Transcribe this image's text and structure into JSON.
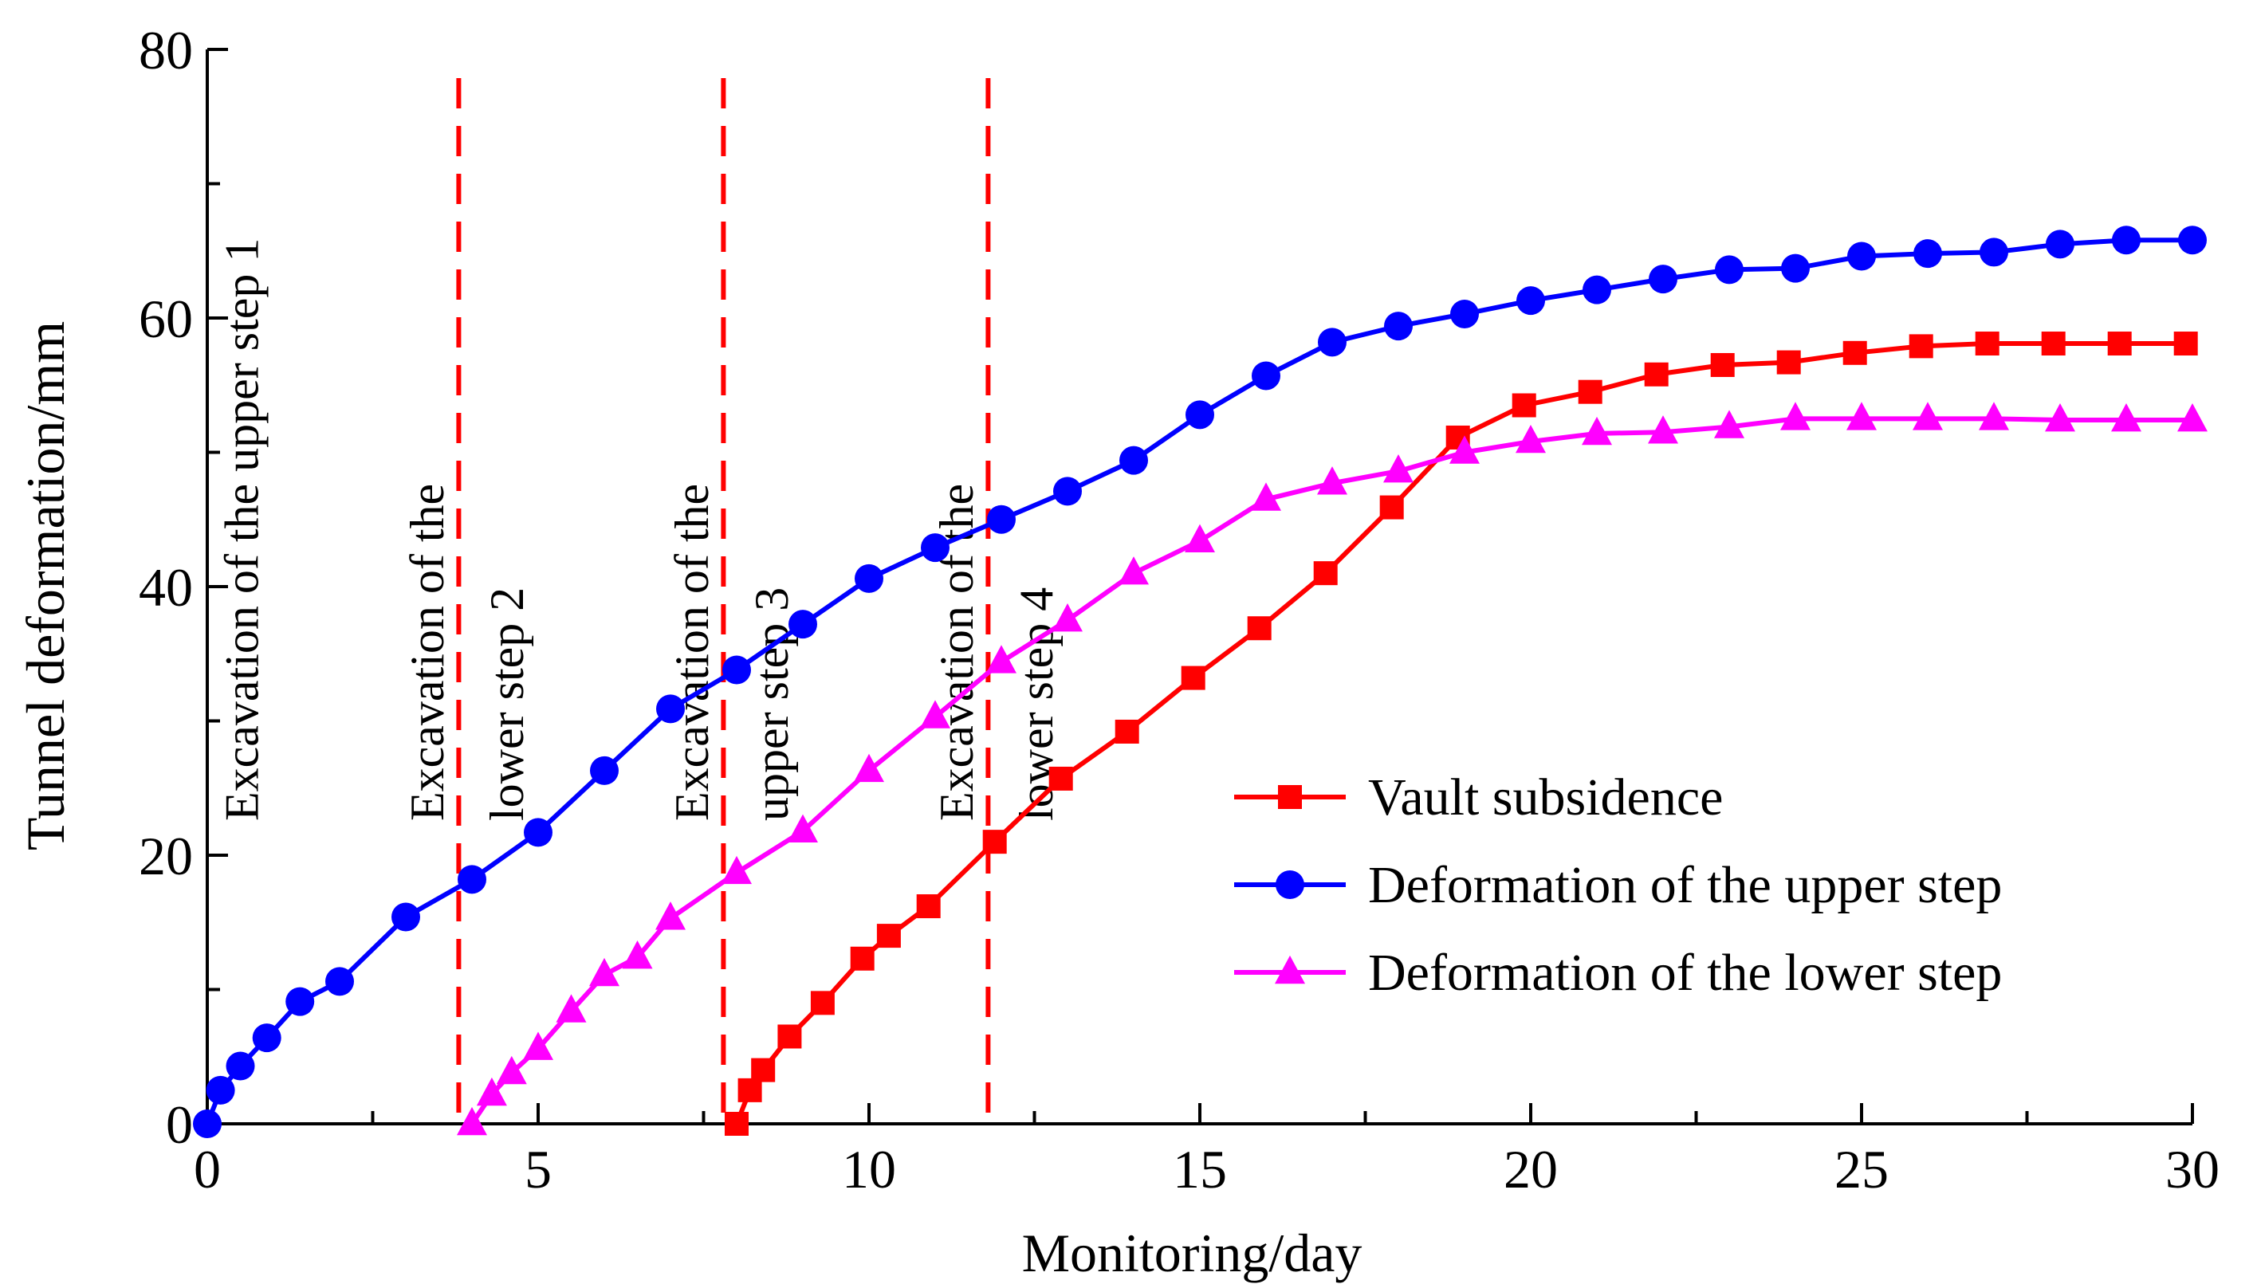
{
  "chart_data": {
    "type": "line",
    "xlabel": "Monitoring/day",
    "ylabel": "Tunnel deformation/mm",
    "xlim": [
      0,
      30
    ],
    "ylim": [
      0,
      80
    ],
    "xticks": [
      0,
      5,
      10,
      15,
      20,
      25,
      30
    ],
    "yticks": [
      0,
      20,
      40,
      60,
      80
    ],
    "series": [
      {
        "name": "Vault subsidence",
        "color": "#ff0000",
        "marker": "square",
        "x": [
          8,
          8.2,
          8.4,
          8.8,
          9.3,
          9.9,
          10.3,
          10.9,
          11.9,
          12.9,
          13.9,
          14.9,
          15.9,
          16.9,
          17.9,
          18.9,
          19.9,
          20.9,
          21.9,
          22.9,
          23.9,
          24.9,
          25.9,
          26.9,
          27.9,
          28.9,
          29.9
        ],
        "y": [
          0,
          2.5,
          4,
          6.5,
          9,
          12.3,
          14,
          16.2,
          21,
          25.7,
          29.2,
          33.2,
          36.9,
          41,
          45.9,
          51.1,
          53.5,
          54.5,
          55.8,
          56.5,
          56.7,
          57.4,
          57.9,
          58.1,
          58.1,
          58.1,
          58.1
        ]
      },
      {
        "name": "Deformation of the upper step",
        "color": "#0000ff",
        "marker": "circle",
        "x": [
          0,
          0.2,
          0.5,
          0.9,
          1.4,
          2,
          3,
          4,
          5,
          6,
          7,
          8,
          9,
          10,
          11,
          12,
          13,
          14,
          15,
          16,
          17,
          18,
          19,
          20,
          21,
          22,
          23,
          24,
          25,
          26,
          27,
          28,
          29,
          30
        ],
        "y": [
          0,
          2.5,
          4.3,
          6.4,
          9.1,
          10.6,
          15.4,
          18.2,
          21.7,
          26.3,
          30.9,
          33.8,
          37.2,
          40.6,
          42.9,
          45,
          47.1,
          49.4,
          52.8,
          55.7,
          58.2,
          59.4,
          60.3,
          61.3,
          62.1,
          62.9,
          63.6,
          63.7,
          64.6,
          64.8,
          64.9,
          65.5,
          65.8,
          65.8
        ]
      },
      {
        "name": "Deformation of the lower step",
        "color": "#ff00ff",
        "marker": "triangle",
        "x": [
          4,
          4.3,
          4.6,
          5,
          5.5,
          6,
          6.5,
          7,
          8,
          9,
          10,
          11,
          12,
          13,
          14,
          15,
          16,
          17,
          18,
          19,
          20,
          21,
          22,
          23,
          24,
          25,
          26,
          27,
          28,
          29,
          30
        ],
        "y": [
          0,
          2.2,
          3.8,
          5.6,
          8.4,
          11.1,
          12.4,
          15.3,
          18.7,
          21.8,
          26.3,
          30.3,
          34.4,
          37.5,
          41,
          43.4,
          46.5,
          47.7,
          48.6,
          50,
          50.8,
          51.4,
          51.5,
          51.9,
          52.5,
          52.5,
          52.5,
          52.5,
          52.4,
          52.4,
          52.4
        ]
      }
    ],
    "annotations": [
      {
        "x": 0.5,
        "lines": [
          "Excavation of the upper step 1"
        ]
      },
      {
        "x": 4,
        "lines": [
          "Excavation of the",
          "lower step 2"
        ]
      },
      {
        "x": 8,
        "lines": [
          "Excavation of the",
          "upper step 3"
        ]
      },
      {
        "x": 12,
        "lines": [
          "Excavation of the",
          "lower step 4"
        ]
      }
    ],
    "dashed_lines": {
      "x": [
        3.8,
        7.8,
        11.8
      ],
      "color": "#ff0000"
    },
    "legend": {
      "position": "lower-right"
    }
  }
}
